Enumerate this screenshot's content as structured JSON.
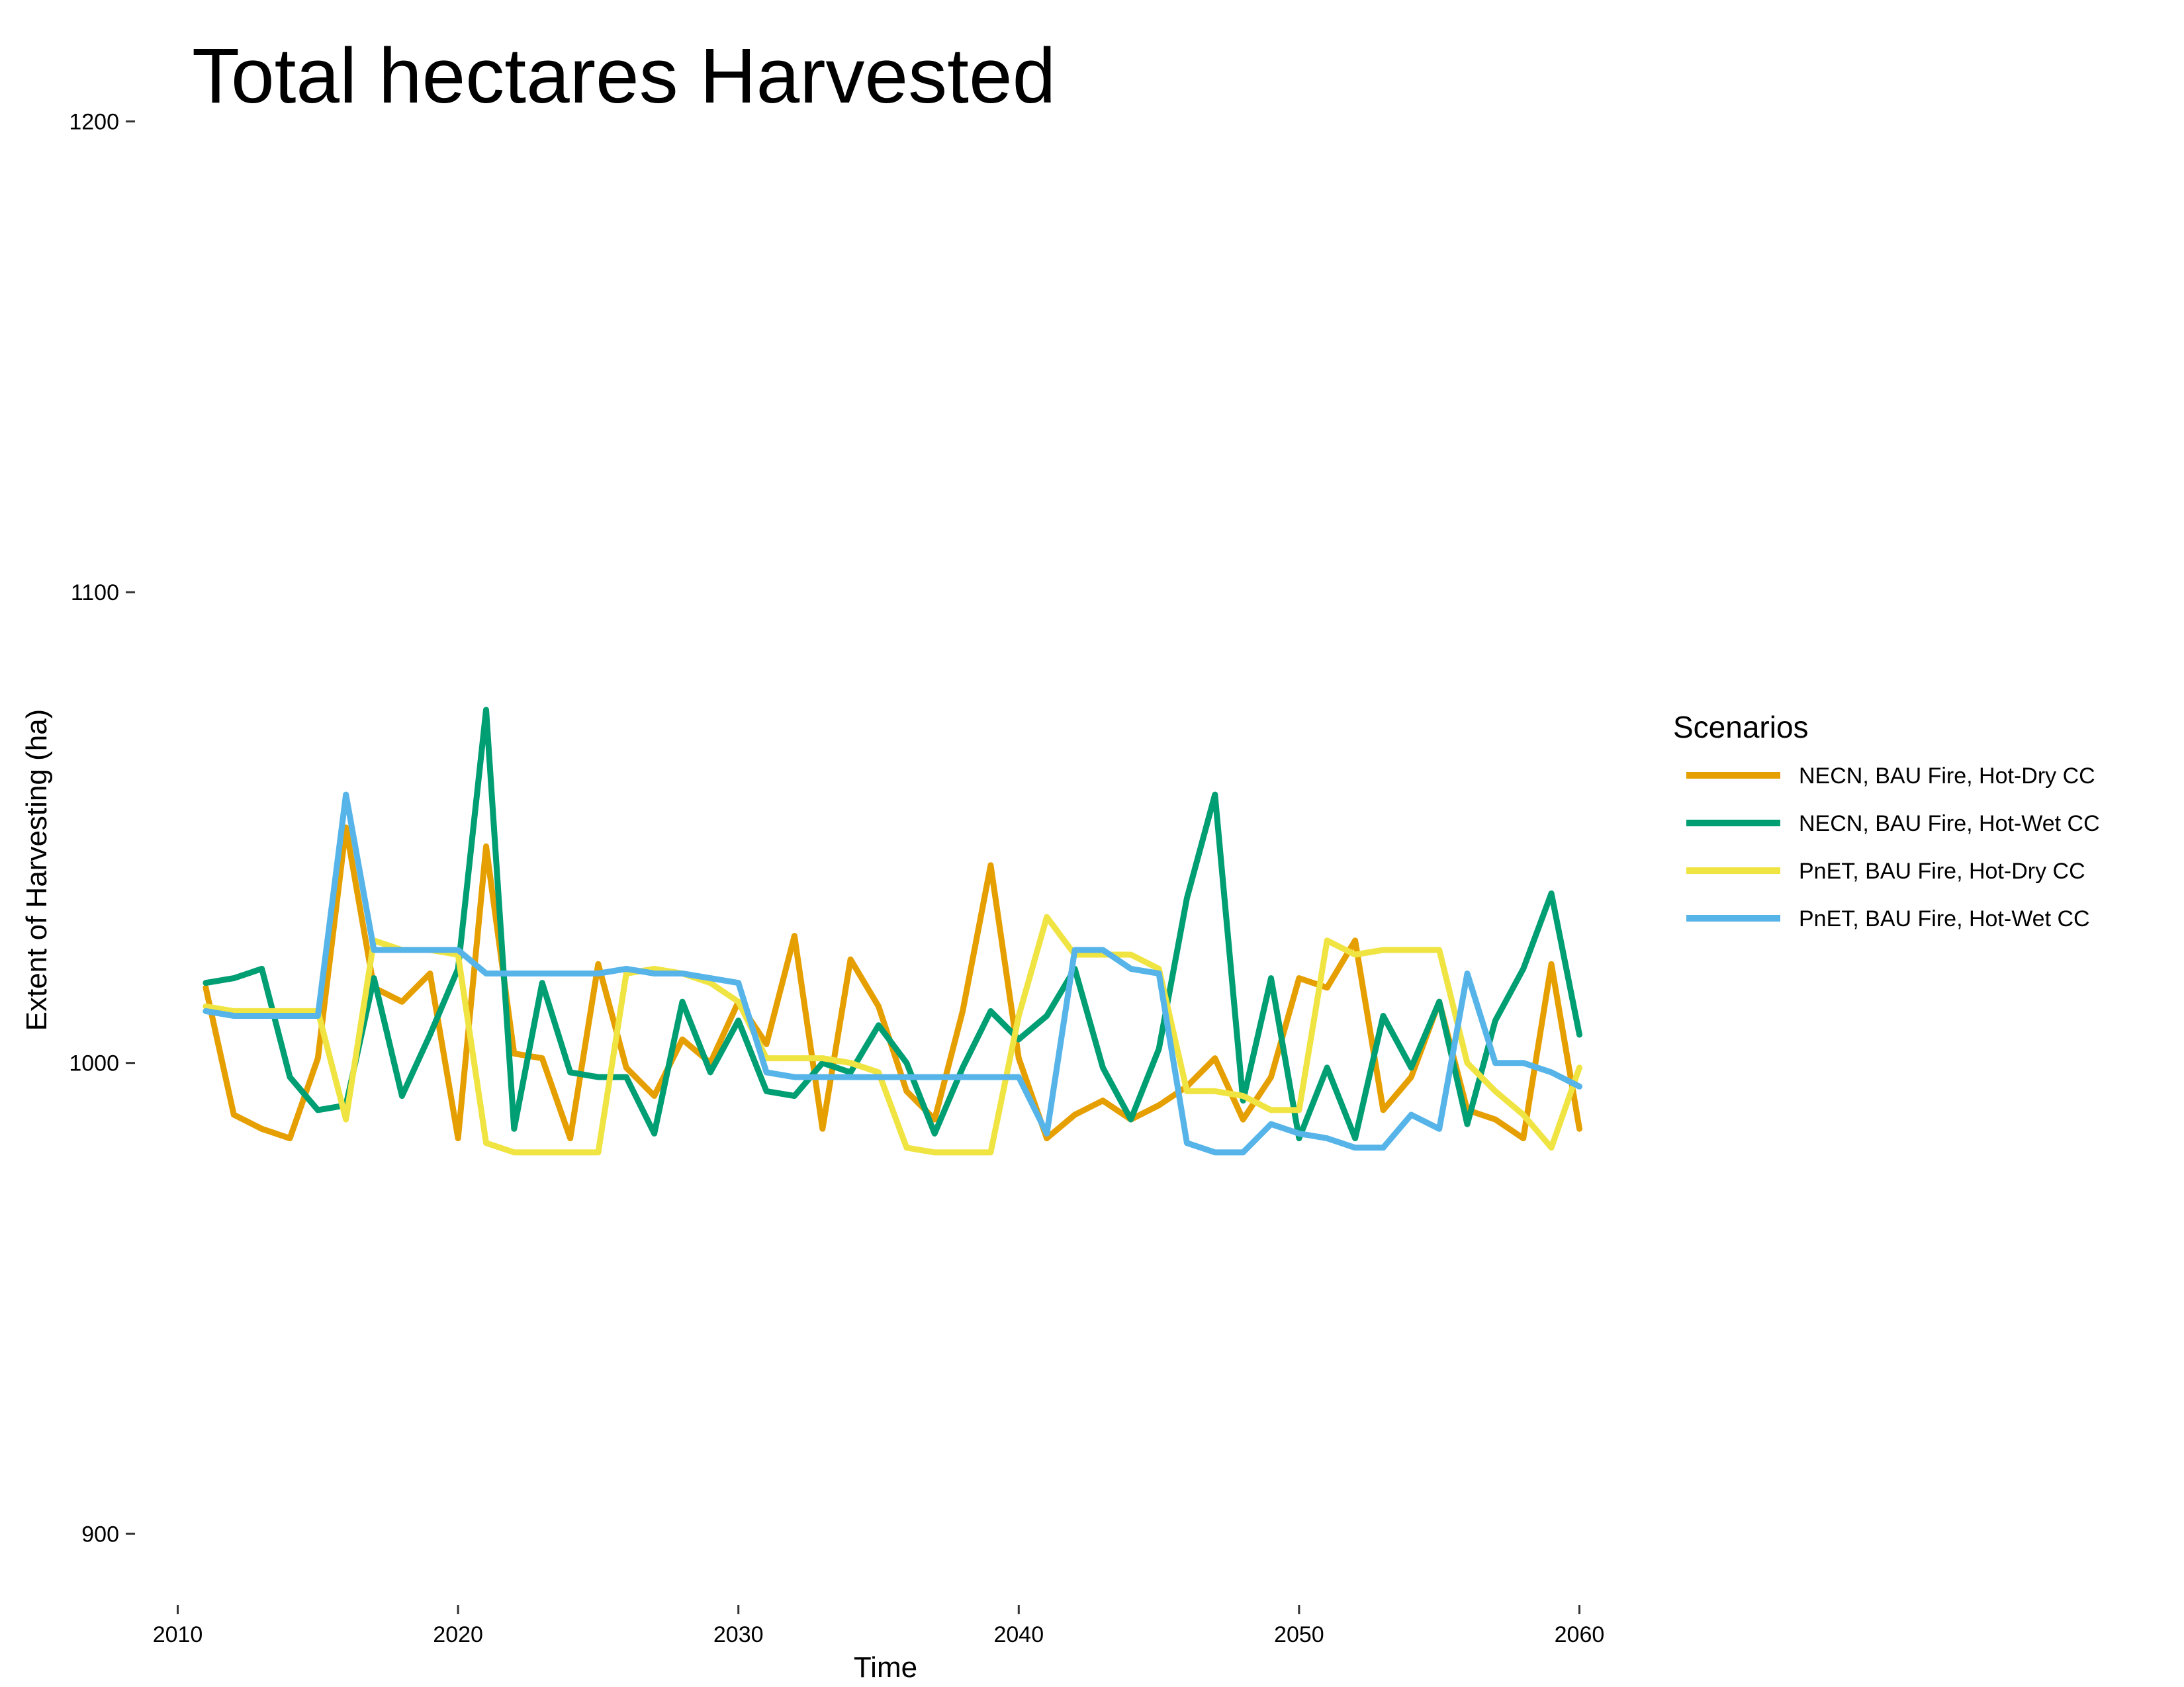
{
  "chart_data": {
    "type": "line",
    "title": "Total hectares Harvested",
    "xlabel": "Time",
    "ylabel": "Extent of Harvesting (ha)",
    "xlim": [
      2008.5,
      2061.5
    ],
    "ylim": [
      885,
      1205
    ],
    "x_ticks": [
      2010,
      2020,
      2030,
      2040,
      2050,
      2060
    ],
    "y_ticks": [
      900,
      1000,
      1100,
      1200
    ],
    "grid": false,
    "legend": {
      "title": "Scenarios",
      "position": "right"
    },
    "x": [
      2011,
      2012,
      2013,
      2014,
      2015,
      2016,
      2017,
      2018,
      2019,
      2020,
      2021,
      2022,
      2023,
      2024,
      2025,
      2026,
      2027,
      2028,
      2029,
      2030,
      2031,
      2032,
      2033,
      2034,
      2035,
      2036,
      2037,
      2038,
      2039,
      2040,
      2041,
      2042,
      2043,
      2044,
      2045,
      2046,
      2047,
      2048,
      2049,
      2050,
      2051,
      2052,
      2053,
      2054,
      2055,
      2056,
      2057,
      2058,
      2059,
      2060
    ],
    "series": [
      {
        "name": "NECN, BAU Fire, Hot-Dry CC",
        "color": "#E69F00",
        "values": [
          1016,
          989,
          986,
          984,
          1001,
          1050,
          1016,
          1013,
          1019,
          984,
          1046,
          1002,
          1001,
          984,
          1021,
          999,
          993,
          1005,
          1000,
          1013,
          1004,
          1027,
          986,
          1022,
          1012,
          994,
          988,
          1011,
          1042,
          1001,
          984,
          989,
          992,
          988,
          991,
          995,
          1001,
          988,
          997,
          1018,
          1016,
          1026,
          990,
          997,
          1013,
          990,
          988,
          984,
          1021,
          986
        ]
      },
      {
        "name": "NECN, BAU Fire, Hot-Wet CC",
        "color": "#009E73",
        "values": [
          1017,
          1018,
          1020,
          997,
          990,
          991,
          1018,
          993,
          1006,
          1020,
          1075,
          986,
          1017,
          998,
          997,
          997,
          985,
          1013,
          998,
          1009,
          994,
          993,
          1000,
          998,
          1008,
          1000,
          985,
          999,
          1011,
          1005,
          1010,
          1020,
          999,
          988,
          1003,
          1035,
          1057,
          992,
          1018,
          984,
          999,
          984,
          1010,
          999,
          1013,
          987,
          1009,
          1020,
          1036,
          1006
        ]
      },
      {
        "name": "PnET, BAU Fire, Hot-Dry CC",
        "color": "#F0E442",
        "values": [
          1012,
          1011,
          1011,
          1011,
          1011,
          988,
          1026,
          1024,
          1024,
          1023,
          983,
          981,
          981,
          981,
          981,
          1019,
          1020,
          1019,
          1017,
          1013,
          1001,
          1001,
          1001,
          1000,
          998,
          982,
          981,
          981,
          981,
          1010,
          1031,
          1023,
          1023,
          1023,
          1020,
          994,
          994,
          993,
          990,
          990,
          1026,
          1023,
          1024,
          1024,
          1024,
          1000,
          994,
          989,
          982,
          999
        ]
      },
      {
        "name": "PnET, BAU Fire, Hot-Wet CC",
        "color": "#56B4E9",
        "values": [
          1011,
          1010,
          1010,
          1010,
          1010,
          1057,
          1024,
          1024,
          1024,
          1024,
          1019,
          1019,
          1019,
          1019,
          1019,
          1020,
          1019,
          1019,
          1018,
          1017,
          998,
          997,
          997,
          997,
          997,
          997,
          997,
          997,
          997,
          997,
          985,
          1024,
          1024,
          1020,
          1019,
          983,
          981,
          981,
          987,
          985,
          984,
          982,
          982,
          989,
          986,
          1019,
          1000,
          1000,
          998,
          995
        ]
      }
    ]
  }
}
